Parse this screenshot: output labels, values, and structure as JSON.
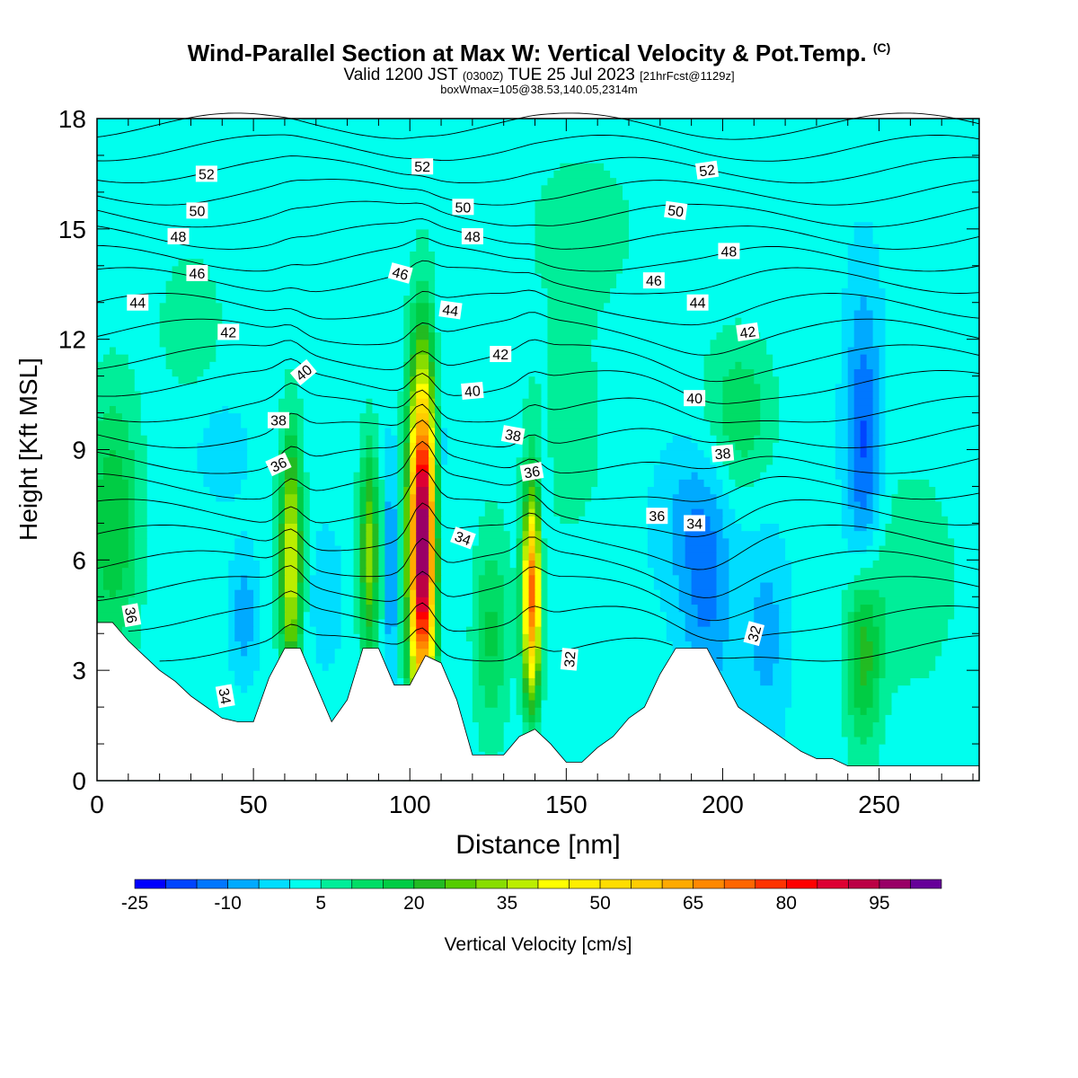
{
  "header": {
    "title": "Wind-Parallel Section at Max W: Vertical Velocity & Pot.Temp.",
    "copyright": "(C)",
    "valid_prefix": "Valid 1200 JST",
    "valid_utc": "(0300Z)",
    "valid_date": "TUE 25 Jul 2023",
    "forecast": "[21hrFcst@1129z]",
    "boxmax": "boxWmax=105@38.53,140.05,2314m"
  },
  "chart_data": {
    "type": "heatmap",
    "xlabel": "Distance [nm]",
    "ylabel": "Height [Kft MSL]",
    "xlim": [
      0,
      282
    ],
    "ylim": [
      0,
      18
    ],
    "x_ticks": [
      0,
      50,
      100,
      150,
      200,
      250
    ],
    "y_ticks": [
      0,
      3,
      6,
      9,
      12,
      15,
      18
    ],
    "x_tick_labels": [
      "0",
      "50",
      "100",
      "150",
      "200",
      "250"
    ],
    "y_tick_labels": [
      "0",
      "3",
      "6",
      "9",
      "12",
      "15",
      "18"
    ],
    "background_w_cms": 2,
    "colorbar": {
      "label": "Vertical Velocity [cm/s]",
      "levels": [
        -25,
        -20,
        -15,
        -10,
        -5,
        0,
        5,
        10,
        15,
        20,
        25,
        30,
        35,
        40,
        45,
        50,
        55,
        60,
        65,
        70,
        75,
        80,
        85,
        90,
        95,
        100,
        105
      ],
      "tick_values": [
        -25,
        -10,
        5,
        20,
        35,
        50,
        65,
        80,
        95
      ],
      "tick_labels": [
        "-25",
        "-10",
        "5",
        "20",
        "35",
        "50",
        "65",
        "80",
        "95"
      ],
      "colors": [
        "#0000ff",
        "#0044ff",
        "#0077ff",
        "#00aaff",
        "#00ddff",
        "#00ffee",
        "#00ee99",
        "#00dd66",
        "#00cc44",
        "#22bb22",
        "#55cc00",
        "#88dd00",
        "#bbee00",
        "#ffff00",
        "#ffee00",
        "#ffdd00",
        "#ffcc00",
        "#ffaa00",
        "#ff8800",
        "#ff6600",
        "#ff3300",
        "#ff0000",
        "#dd0033",
        "#bb0044",
        "#990066",
        "#660099"
      ]
    },
    "terrain_kft": [
      [
        0,
        4.3
      ],
      [
        5,
        4.3
      ],
      [
        10,
        3.8
      ],
      [
        15,
        3.4
      ],
      [
        20,
        3.0
      ],
      [
        25,
        2.7
      ],
      [
        30,
        2.3
      ],
      [
        35,
        2.0
      ],
      [
        40,
        1.7
      ],
      [
        45,
        1.6
      ],
      [
        50,
        1.6
      ],
      [
        55,
        2.8
      ],
      [
        60,
        3.6
      ],
      [
        65,
        3.6
      ],
      [
        70,
        2.6
      ],
      [
        75,
        1.6
      ],
      [
        80,
        2.2
      ],
      [
        85,
        3.6
      ],
      [
        90,
        3.6
      ],
      [
        95,
        2.6
      ],
      [
        100,
        2.6
      ],
      [
        105,
        3.4
      ],
      [
        110,
        3.2
      ],
      [
        115,
        2.2
      ],
      [
        120,
        0.7
      ],
      [
        130,
        0.7
      ],
      [
        135,
        1.2
      ],
      [
        140,
        1.4
      ],
      [
        145,
        1.0
      ],
      [
        150,
        0.5
      ],
      [
        155,
        0.5
      ],
      [
        160,
        0.9
      ],
      [
        165,
        1.2
      ],
      [
        170,
        1.7
      ],
      [
        175,
        2.0
      ],
      [
        180,
        2.9
      ],
      [
        185,
        3.6
      ],
      [
        195,
        3.6
      ],
      [
        200,
        2.8
      ],
      [
        205,
        2.0
      ],
      [
        210,
        1.7
      ],
      [
        215,
        1.4
      ],
      [
        220,
        1.1
      ],
      [
        225,
        0.8
      ],
      [
        230,
        0.6
      ],
      [
        235,
        0.6
      ],
      [
        240,
        0.4
      ],
      [
        250,
        0.4
      ],
      [
        260,
        0.4
      ],
      [
        282,
        0.4
      ]
    ],
    "w_features": [
      {
        "x": 62,
        "y": 6.0,
        "sx": 2.5,
        "sy": 2.3,
        "w": 40
      },
      {
        "x": 87,
        "y": 6.2,
        "sx": 2.2,
        "sy": 2.0,
        "w": 30
      },
      {
        "x": 94,
        "y": 5.8,
        "sx": 1.3,
        "sy": 2.2,
        "w": -14
      },
      {
        "x": 104,
        "y": 6.5,
        "sx": 3.0,
        "sy": 3.2,
        "w": 103
      },
      {
        "x": 110,
        "y": 7.5,
        "sx": 1.5,
        "sy": 3.0,
        "w": -10
      },
      {
        "x": 139,
        "y": 5.0,
        "sx": 2.0,
        "sy": 1.9,
        "w": 70
      },
      {
        "x": 143,
        "y": 7.2,
        "sx": 1.4,
        "sy": 2.0,
        "w": -6
      },
      {
        "x": 126,
        "y": 4.0,
        "sx": 4.0,
        "sy": 2.0,
        "w": 14
      },
      {
        "x": 5,
        "y": 7.0,
        "sx": 6.0,
        "sy": 2.5,
        "w": 18
      },
      {
        "x": 47,
        "y": 4.5,
        "sx": 3.0,
        "sy": 1.2,
        "w": -10
      },
      {
        "x": 73,
        "y": 5.0,
        "sx": 4.0,
        "sy": 1.5,
        "w": -5
      },
      {
        "x": 195,
        "y": 5.0,
        "sx": 6.0,
        "sy": 2.5,
        "w": -12
      },
      {
        "x": 188,
        "y": 7.0,
        "sx": 8.0,
        "sy": 1.5,
        "w": -7
      },
      {
        "x": 214,
        "y": 4.0,
        "sx": 5.0,
        "sy": 2.0,
        "w": -9
      },
      {
        "x": 245,
        "y": 9.0,
        "sx": 4.0,
        "sy": 3.0,
        "w": -18
      },
      {
        "x": 245,
        "y": 3.5,
        "sx": 4.0,
        "sy": 1.8,
        "w": 22
      },
      {
        "x": 205,
        "y": 10.0,
        "sx": 8.0,
        "sy": 1.5,
        "w": 12
      },
      {
        "x": 30,
        "y": 12.5,
        "sx": 8.0,
        "sy": 1.5,
        "w": 6
      },
      {
        "x": 150,
        "y": 9.0,
        "sx": 10.0,
        "sy": 2.0,
        "w": 5
      },
      {
        "x": 260,
        "y": 5.5,
        "sx": 10.0,
        "sy": 2.0,
        "w": 8
      },
      {
        "x": 40,
        "y": 9.0,
        "sx": 6.0,
        "sy": 1.0,
        "w": -5
      },
      {
        "x": 155,
        "y": 15.0,
        "sx": 20.0,
        "sy": 2.5,
        "w": 4
      }
    ],
    "theta_base_kft": [
      3.6,
      4.4,
      5.2,
      5.9,
      6.6,
      7.3,
      8.0,
      8.7,
      9.4,
      10.1,
      10.8,
      11.5,
      12.2,
      12.9,
      13.6,
      14.2,
      14.8,
      15.4,
      16.0,
      16.6,
      17.2,
      17.8
    ],
    "theta_labels": [
      {
        "text": "52",
        "x": 35,
        "y": 16.5,
        "rot": 0
      },
      {
        "text": "52",
        "x": 104,
        "y": 16.7,
        "rot": 0
      },
      {
        "text": "52",
        "x": 195,
        "y": 16.6,
        "rot": -8
      },
      {
        "text": "50",
        "x": 32,
        "y": 15.5,
        "rot": 0
      },
      {
        "text": "50",
        "x": 117,
        "y": 15.6,
        "rot": 0
      },
      {
        "text": "50",
        "x": 185,
        "y": 15.5,
        "rot": 8
      },
      {
        "text": "48",
        "x": 26,
        "y": 14.8,
        "rot": 0
      },
      {
        "text": "48",
        "x": 120,
        "y": 14.8,
        "rot": 0
      },
      {
        "text": "48",
        "x": 202,
        "y": 14.4,
        "rot": 0
      },
      {
        "text": "46",
        "x": 32,
        "y": 13.8,
        "rot": 0
      },
      {
        "text": "46",
        "x": 97,
        "y": 13.8,
        "rot": 15
      },
      {
        "text": "46",
        "x": 178,
        "y": 13.6,
        "rot": 0
      },
      {
        "text": "44",
        "x": 13,
        "y": 13.0,
        "rot": 0
      },
      {
        "text": "44",
        "x": 113,
        "y": 12.8,
        "rot": 8
      },
      {
        "text": "44",
        "x": 192,
        "y": 13.0,
        "rot": 0
      },
      {
        "text": "42",
        "x": 42,
        "y": 12.2,
        "rot": 0
      },
      {
        "text": "42",
        "x": 129,
        "y": 11.6,
        "rot": 0
      },
      {
        "text": "42",
        "x": 208,
        "y": 12.2,
        "rot": -8
      },
      {
        "text": "40",
        "x": 66,
        "y": 11.1,
        "rot": -40
      },
      {
        "text": "40",
        "x": 120,
        "y": 10.6,
        "rot": -5
      },
      {
        "text": "40",
        "x": 191,
        "y": 10.4,
        "rot": 0
      },
      {
        "text": "38",
        "x": 58,
        "y": 9.8,
        "rot": 0
      },
      {
        "text": "38",
        "x": 133,
        "y": 9.4,
        "rot": 10
      },
      {
        "text": "38",
        "x": 200,
        "y": 8.9,
        "rot": -5
      },
      {
        "text": "36",
        "x": 58,
        "y": 8.6,
        "rot": -25
      },
      {
        "text": "36",
        "x": 139,
        "y": 8.4,
        "rot": -10
      },
      {
        "text": "36",
        "x": 179,
        "y": 7.2,
        "rot": 0
      },
      {
        "text": "36",
        "x": 11,
        "y": 4.5,
        "rot": 80
      },
      {
        "text": "34",
        "x": 117,
        "y": 6.6,
        "rot": 20
      },
      {
        "text": "34",
        "x": 191,
        "y": 7.0,
        "rot": 0
      },
      {
        "text": "34",
        "x": 41,
        "y": 2.3,
        "rot": 80
      },
      {
        "text": "32",
        "x": 151,
        "y": 3.3,
        "rot": -85
      },
      {
        "text": "32",
        "x": 210,
        "y": 4.0,
        "rot": -75
      }
    ]
  }
}
